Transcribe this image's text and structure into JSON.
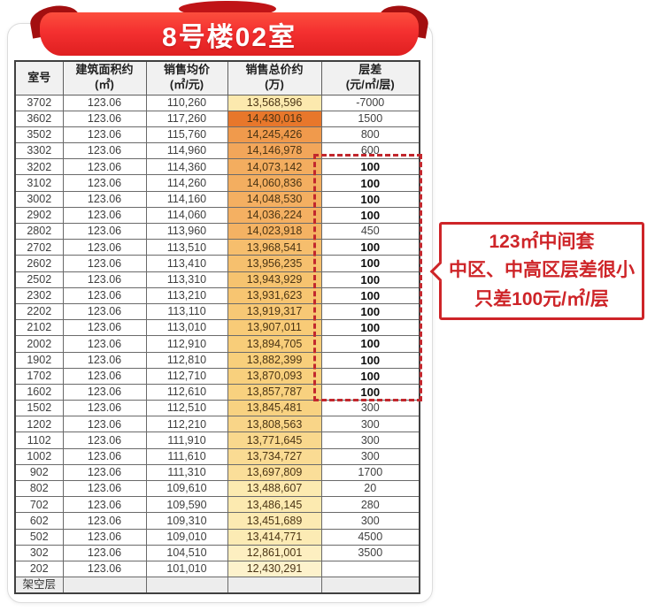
{
  "banner": {
    "title": "8号楼02室"
  },
  "chart_data": {
    "type": "table",
    "title": "8号楼02室",
    "columns": [
      "室号",
      "建筑面积约\n(㎡)",
      "销售均价\n(㎡/元)",
      "销售总价约\n(万)",
      "层差\n(元/㎡/层)"
    ],
    "rows": [
      {
        "room": "3702",
        "area": "123.06",
        "unit_price": "110,260",
        "total_price": "13,568,596",
        "total_bg": "#FCE9AE",
        "floor_diff": "-7000",
        "diff_bold": false
      },
      {
        "room": "3602",
        "area": "123.06",
        "unit_price": "117,260",
        "total_price": "14,430,016",
        "total_bg": "#E8772B",
        "floor_diff": "1500",
        "diff_bold": false
      },
      {
        "room": "3502",
        "area": "123.06",
        "unit_price": "115,760",
        "total_price": "14,245,426",
        "total_bg": "#F09A4C",
        "floor_diff": "800",
        "diff_bold": false
      },
      {
        "room": "3302",
        "area": "123.06",
        "unit_price": "114,960",
        "total_price": "14,146,978",
        "total_bg": "#F2A65A",
        "floor_diff": "600",
        "diff_bold": false
      },
      {
        "room": "3202",
        "area": "123.06",
        "unit_price": "114,360",
        "total_price": "14,073,142",
        "total_bg": "#F3AD5F",
        "floor_diff": "100",
        "diff_bold": true
      },
      {
        "room": "3102",
        "area": "123.06",
        "unit_price": "114,260",
        "total_price": "14,060,836",
        "total_bg": "#F3AE60",
        "floor_diff": "100",
        "diff_bold": true
      },
      {
        "room": "3002",
        "area": "123.06",
        "unit_price": "114,160",
        "total_price": "14,048,530",
        "total_bg": "#F4AF61",
        "floor_diff": "100",
        "diff_bold": true
      },
      {
        "room": "2902",
        "area": "123.06",
        "unit_price": "114,060",
        "total_price": "14,036,224",
        "total_bg": "#F4B062",
        "floor_diff": "100",
        "diff_bold": true
      },
      {
        "room": "2802",
        "area": "123.06",
        "unit_price": "113,960",
        "total_price": "14,023,918",
        "total_bg": "#F4B263",
        "floor_diff": "450",
        "diff_bold": false
      },
      {
        "room": "2702",
        "area": "123.06",
        "unit_price": "113,510",
        "total_price": "13,968,541",
        "total_bg": "#F6BE6D",
        "floor_diff": "100",
        "diff_bold": true
      },
      {
        "room": "2602",
        "area": "123.06",
        "unit_price": "113,410",
        "total_price": "13,956,235",
        "total_bg": "#F6C06E",
        "floor_diff": "100",
        "diff_bold": true
      },
      {
        "room": "2502",
        "area": "123.06",
        "unit_price": "113,310",
        "total_price": "13,943,929",
        "total_bg": "#F6C36F",
        "floor_diff": "100",
        "diff_bold": true
      },
      {
        "room": "2302",
        "area": "123.06",
        "unit_price": "113,210",
        "total_price": "13,931,623",
        "total_bg": "#F7C571",
        "floor_diff": "100",
        "diff_bold": true
      },
      {
        "room": "2202",
        "area": "123.06",
        "unit_price": "113,110",
        "total_price": "13,919,317",
        "total_bg": "#F7C875",
        "floor_diff": "100",
        "diff_bold": true
      },
      {
        "room": "2102",
        "area": "123.06",
        "unit_price": "113,010",
        "total_price": "13,907,011",
        "total_bg": "#F8CB77",
        "floor_diff": "100",
        "diff_bold": true
      },
      {
        "room": "2002",
        "area": "123.06",
        "unit_price": "112,910",
        "total_price": "13,894,705",
        "total_bg": "#F8CD79",
        "floor_diff": "100",
        "diff_bold": true
      },
      {
        "room": "1902",
        "area": "123.06",
        "unit_price": "112,810",
        "total_price": "13,882,399",
        "total_bg": "#F8CF7B",
        "floor_diff": "100",
        "diff_bold": true
      },
      {
        "room": "1702",
        "area": "123.06",
        "unit_price": "112,710",
        "total_price": "13,870,093",
        "total_bg": "#F8D07D",
        "floor_diff": "100",
        "diff_bold": true
      },
      {
        "room": "1602",
        "area": "123.06",
        "unit_price": "112,610",
        "total_price": "13,857,787",
        "total_bg": "#F8D17F",
        "floor_diff": "100",
        "diff_bold": true
      },
      {
        "room": "1502",
        "area": "123.06",
        "unit_price": "112,510",
        "total_price": "13,845,481",
        "total_bg": "#F8D281",
        "floor_diff": "300",
        "diff_bold": false
      },
      {
        "room": "1202",
        "area": "123.06",
        "unit_price": "112,210",
        "total_price": "13,808,563",
        "total_bg": "#F9D588",
        "floor_diff": "300",
        "diff_bold": false
      },
      {
        "room": "1102",
        "area": "123.06",
        "unit_price": "111,910",
        "total_price": "13,771,645",
        "total_bg": "#F9D88D",
        "floor_diff": "300",
        "diff_bold": false
      },
      {
        "room": "1002",
        "area": "123.06",
        "unit_price": "111,610",
        "total_price": "13,734,727",
        "total_bg": "#FADB93",
        "floor_diff": "300",
        "diff_bold": false
      },
      {
        "room": "902",
        "area": "123.06",
        "unit_price": "111,310",
        "total_price": "13,697,809",
        "total_bg": "#FADE99",
        "floor_diff": "1700",
        "diff_bold": false
      },
      {
        "room": "802",
        "area": "123.06",
        "unit_price": "109,610",
        "total_price": "13,488,607",
        "total_bg": "#FCEAB0",
        "floor_diff": "20",
        "diff_bold": false
      },
      {
        "room": "702",
        "area": "123.06",
        "unit_price": "109,590",
        "total_price": "13,486,145",
        "total_bg": "#FCEAB0",
        "floor_diff": "280",
        "diff_bold": false
      },
      {
        "room": "602",
        "area": "123.06",
        "unit_price": "109,310",
        "total_price": "13,451,689",
        "total_bg": "#FCEAB2",
        "floor_diff": "300",
        "diff_bold": false
      },
      {
        "room": "502",
        "area": "123.06",
        "unit_price": "109,010",
        "total_price": "13,414,771",
        "total_bg": "#FCEBB4",
        "floor_diff": "4500",
        "diff_bold": false
      },
      {
        "room": "302",
        "area": "123.06",
        "unit_price": "104,510",
        "total_price": "12,861,001",
        "total_bg": "#FDEFC1",
        "floor_diff": "3500",
        "diff_bold": false
      },
      {
        "room": "202",
        "area": "123.06",
        "unit_price": "101,010",
        "total_price": "12,430,291",
        "total_bg": "#FDF2CC",
        "floor_diff": "",
        "diff_bold": false
      }
    ],
    "footer_label": "架空层",
    "layout_hints": {
      "total_price_color_scale": [
        "#FDF2CC",
        "#E8772B"
      ],
      "grid": true
    }
  },
  "annotation": {
    "highlight_box_color": "#C2272D",
    "callout": {
      "color": "#CE2428",
      "lines": [
        "123㎡中间套",
        "中区、中高区层差很小",
        "只差100元/㎡/层"
      ]
    }
  },
  "colors": {
    "banner_red": "#F43030",
    "banner_fold_red": "#A30F10",
    "header_bg": "#F1F1F1"
  }
}
